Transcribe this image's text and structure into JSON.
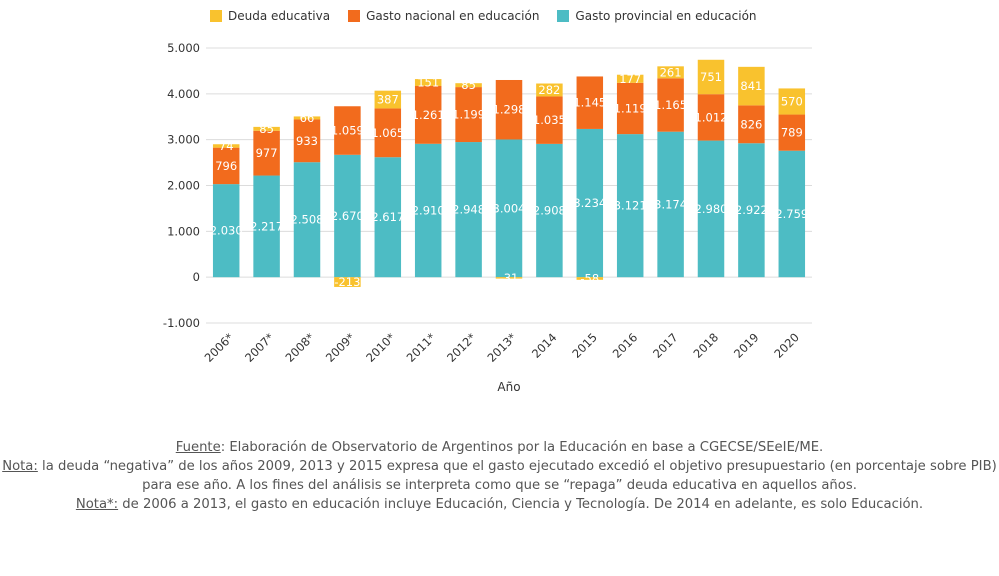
{
  "chart_data": {
    "type": "bar",
    "stacked": true,
    "categories": [
      "2006*",
      "2007*",
      "2008*",
      "2009*",
      "2010*",
      "2011*",
      "2012*",
      "2013*",
      "2014",
      "2015",
      "2016",
      "2017",
      "2018",
      "2019",
      "2020"
    ],
    "series": [
      {
        "name": "Gasto provincial en educación",
        "color": "#4dbcc4",
        "values": [
          2030,
          2217,
          2508,
          2670,
          2617,
          2910,
          2948,
          3004,
          2908,
          3234,
          3121,
          3174,
          2980,
          2922,
          2759
        ],
        "labels": [
          "2.030",
          "2.217",
          "2.508",
          "2.670",
          "2.617",
          "2.910",
          "2.948",
          "3.004",
          "2.908",
          "3.234",
          "3.121",
          "3.174",
          "2.980",
          "2.922",
          "2.759"
        ]
      },
      {
        "name": "Gasto nacional en educación",
        "color": "#f26b1d",
        "values": [
          796,
          977,
          933,
          1059,
          1065,
          1261,
          1199,
          1298,
          1035,
          1145,
          1119,
          1165,
          1012,
          826,
          789
        ],
        "labels": [
          "796",
          "977",
          "933",
          "1.059",
          "1.065",
          "1.261",
          "1.199",
          "1.298",
          "1.035",
          "1.145",
          "1.119",
          "1.165",
          "1.012",
          "826",
          "789"
        ]
      },
      {
        "name": "Deuda educativa",
        "color": "#f9c22e",
        "values": [
          74,
          85,
          66,
          -213,
          387,
          151,
          85,
          -31,
          282,
          -58,
          177,
          261,
          751,
          841,
          570
        ],
        "labels": [
          "74",
          "85",
          "66",
          "-213",
          "387",
          "151",
          "85",
          "-31",
          "282",
          "-58",
          "177",
          "261",
          "751",
          "841",
          "570"
        ]
      }
    ],
    "legend_order": [
      "Deuda educativa",
      "Gasto nacional en educación",
      "Gasto provincial en educación"
    ],
    "ylim": [
      -1000,
      5000
    ],
    "yticks": [
      -1000,
      0,
      1000,
      2000,
      3000,
      4000,
      5000
    ],
    "ytick_labels": [
      "-1.000",
      "0",
      "1.000",
      "2.000",
      "3.000",
      "4.000",
      "5.000"
    ],
    "xlabel": "Año",
    "ylabel": "",
    "legend_position": "top",
    "grid": true
  },
  "notes": {
    "fuente_label": "Fuente",
    "fuente_text": ": Elaboración de Observatorio de Argentinos por la Educación en base a CGECSE/SEeIE/ME.",
    "nota_label": "Nota:",
    "nota_text": " la deuda “negativa” de los años 2009, 2013 y 2015 expresa que el gasto ejecutado excedió el objetivo presupuestario (en porcentaje sobre PIB) para ese año. A los fines del análisis se interpreta como que se “repaga” deuda educativa en aquellos años.",
    "nota2_label": "Nota*:",
    "nota2_text": " de 2006 a 2013, el gasto en educación incluye Educación, Ciencia y Tecnología. De 2014 en adelante, es solo Educación."
  }
}
